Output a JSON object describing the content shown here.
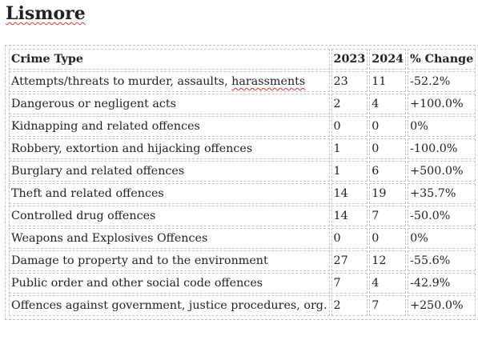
{
  "title": "Lismore",
  "table": {
    "headers": [
      "Crime Type",
      "2023",
      "2024",
      "% Change"
    ],
    "rows": [
      {
        "type_main": "Attempts/threats to murder, assaults, ",
        "type_spell": "harassments",
        "y2023": "23",
        "y2024": "11",
        "change": "-52.2%"
      },
      {
        "type_main": "Dangerous or negligent acts",
        "type_spell": "",
        "y2023": "2",
        "y2024": "4",
        "change": "+100.0%"
      },
      {
        "type_main": "Kidnapping and related offences",
        "type_spell": "",
        "y2023": "0",
        "y2024": "0",
        "change": "0%"
      },
      {
        "type_main": "Robbery, extortion and hijacking offences",
        "type_spell": "",
        "y2023": "1",
        "y2024": "0",
        "change": "-100.0%"
      },
      {
        "type_main": "Burglary and related offences",
        "type_spell": "",
        "y2023": "1",
        "y2024": "6",
        "change": "+500.0%"
      },
      {
        "type_main": "Theft and related offences",
        "type_spell": "",
        "y2023": "14",
        "y2024": "19",
        "change": "+35.7%"
      },
      {
        "type_main": "Controlled drug offences",
        "type_spell": "",
        "y2023": "14",
        "y2024": "7",
        "change": "-50.0%"
      },
      {
        "type_main": "Weapons and Explosives Offences",
        "type_spell": "",
        "y2023": "0",
        "y2024": "0",
        "change": "0%"
      },
      {
        "type_main": "Damage to property and to the environment",
        "type_spell": "",
        "y2023": "27",
        "y2024": "12",
        "change": "-55.6%"
      },
      {
        "type_main": "Public order and other social code offences",
        "type_spell": "",
        "y2023": "7",
        "y2024": "4",
        "change": "-42.9%"
      },
      {
        "type_main": "Offences against government, justice procedures, org.",
        "type_spell": "",
        "y2023": "2",
        "y2024": "7",
        "change": "+250.0%"
      }
    ]
  }
}
